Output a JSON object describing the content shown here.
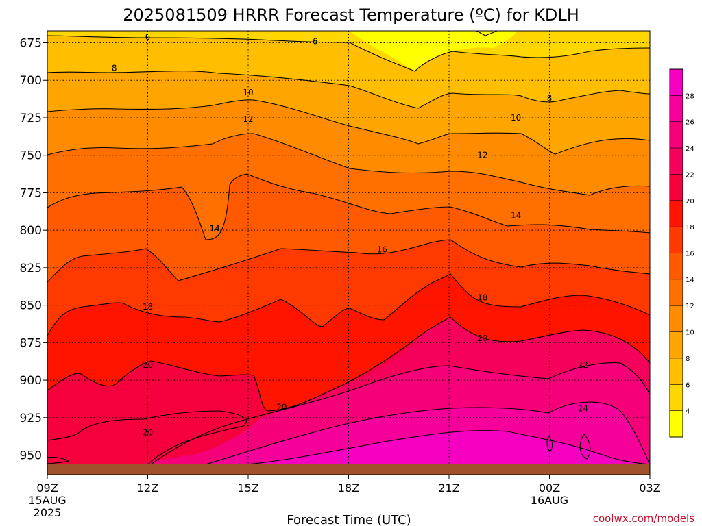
{
  "title": "2025081509 HRRR Forecast Temperature (ºC) for KDLH",
  "credit": "coolwx.com/models",
  "colors": {
    "ground": "#a0522d",
    "contour_line": "#000000",
    "grid": "#000000",
    "title_text": "#000000",
    "credit_text": "#c8102e"
  },
  "chart_data": {
    "type": "contour",
    "title": "2025081509 HRRR Forecast Temperature (ºC) for KDLH",
    "xlabel": "Forecast Time (UTC)",
    "ylabel": "",
    "x_ticks": [
      {
        "hour": 0,
        "lines": [
          "09Z",
          "15AUG",
          "2025"
        ]
      },
      {
        "hour": 3,
        "lines": [
          "12Z"
        ]
      },
      {
        "hour": 6,
        "lines": [
          "15Z"
        ]
      },
      {
        "hour": 9,
        "lines": [
          "18Z"
        ]
      },
      {
        "hour": 12,
        "lines": [
          "21Z"
        ]
      },
      {
        "hour": 15,
        "lines": [
          "00Z",
          "16AUG"
        ]
      },
      {
        "hour": 18,
        "lines": [
          "03Z"
        ]
      }
    ],
    "xlim": [
      0,
      18
    ],
    "y_ticks": [
      675,
      700,
      725,
      750,
      775,
      800,
      825,
      850,
      875,
      900,
      925,
      950
    ],
    "ylim": [
      667,
      963
    ],
    "y_inverted": true,
    "grid": true,
    "colorbar": {
      "ticks": [
        4,
        6,
        8,
        10,
        12,
        14,
        16,
        18,
        20,
        22,
        24,
        26,
        28
      ],
      "colors": [
        "#ffff00",
        "#ffd700",
        "#ffbf00",
        "#ffa500",
        "#ff8c00",
        "#ff7000",
        "#ff5a00",
        "#ff3a00",
        "#ff1400",
        "#f5003c",
        "#f5005a",
        "#f50078",
        "#f5009b",
        "#f500c0"
      ],
      "placement": "right"
    },
    "contour_labels": [
      {
        "value": 6,
        "text": "6",
        "x": 3.0,
        "y": 671
      },
      {
        "value": 6,
        "text": "6",
        "x": 8.0,
        "y": 674
      },
      {
        "value": 8,
        "text": "8",
        "x": 2.0,
        "y": 692
      },
      {
        "value": 8,
        "text": "8",
        "x": 15.0,
        "y": 712
      },
      {
        "value": 10,
        "text": "10",
        "x": 6.0,
        "y": 708
      },
      {
        "value": 10,
        "text": "10",
        "x": 14.0,
        "y": 725
      },
      {
        "value": 12,
        "text": "12",
        "x": 6.0,
        "y": 726
      },
      {
        "value": 12,
        "text": "12",
        "x": 13.0,
        "y": 750
      },
      {
        "value": 14,
        "text": "14",
        "x": 5.0,
        "y": 799
      },
      {
        "value": 14,
        "text": "14",
        "x": 14.0,
        "y": 790
      },
      {
        "value": 16,
        "text": "16",
        "x": 10.0,
        "y": 813
      },
      {
        "value": 18,
        "text": "18",
        "x": 3.0,
        "y": 851
      },
      {
        "value": 18,
        "text": "18",
        "x": 13.0,
        "y": 845
      },
      {
        "value": 20,
        "text": "20",
        "x": 3.0,
        "y": 890
      },
      {
        "value": 20,
        "text": "20",
        "x": 7.0,
        "y": 918
      },
      {
        "value": 20,
        "text": "20",
        "x": 3.0,
        "y": 935
      },
      {
        "value": 20,
        "text": "20",
        "x": 13.0,
        "y": 872
      },
      {
        "value": 22,
        "text": "22",
        "x": 16.0,
        "y": 890
      },
      {
        "value": 24,
        "text": "24",
        "x": 16.0,
        "y": 919
      }
    ]
  }
}
